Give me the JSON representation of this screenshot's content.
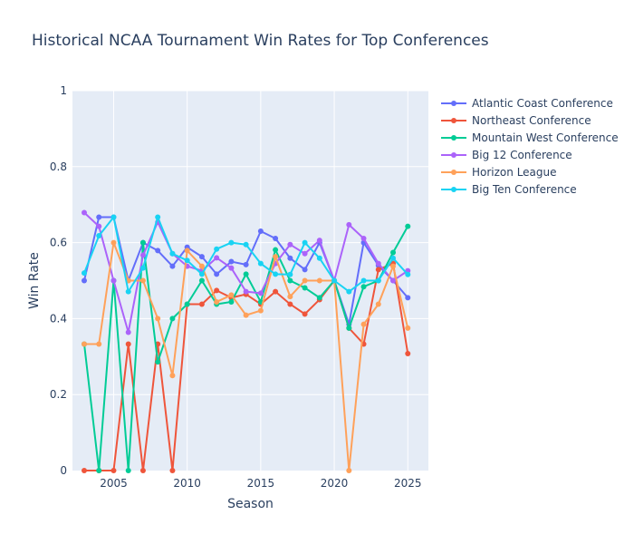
{
  "chart_data": {
    "type": "line",
    "title": "Historical NCAA Tournament Win Rates for Top Conferences",
    "xlabel": "Season",
    "ylabel": "Win Rate",
    "xlim": [
      2002.2,
      2026.4
    ],
    "ylim": [
      0,
      1
    ],
    "x_ticks": [
      2005,
      2010,
      2015,
      2020,
      2025
    ],
    "y_ticks": [
      0,
      0.2,
      0.4,
      0.6,
      0.8,
      1
    ],
    "y_tick_labels": [
      "0",
      "0.2",
      "0.4",
      "0.6",
      "0.8",
      "1"
    ],
    "grid": true,
    "legend_position": "right",
    "x": [
      2003,
      2004,
      2005,
      2006,
      2007,
      2008,
      2009,
      2010,
      2011,
      2012,
      2013,
      2014,
      2015,
      2016,
      2017,
      2018,
      2019,
      2020,
      2021,
      2022,
      2023,
      2024,
      2025
    ],
    "series": [
      {
        "name": "Atlantic Coast Conference",
        "color": "#636efa",
        "values": [
          0.5,
          0.667,
          0.667,
          0.5,
          0.6,
          0.579,
          0.538,
          0.588,
          0.563,
          0.517,
          0.55,
          0.542,
          0.63,
          0.611,
          0.559,
          0.529,
          0.6,
          0.5,
          0.385,
          0.6,
          0.54,
          0.5,
          0.455
        ]
      },
      {
        "name": "Northeast Conference",
        "color": "#EF553B",
        "values": [
          0,
          0,
          0,
          0.333,
          0,
          0.333,
          0,
          0.438,
          0.438,
          0.474,
          0.455,
          0.464,
          0.438,
          0.471,
          0.438,
          0.412,
          0.45,
          0.5,
          0.375,
          0.333,
          0.529,
          0.545,
          0.308
        ]
      },
      {
        "name": "Mountain West Conference",
        "color": "#00cc96",
        "values": [
          0.333,
          0,
          0.5,
          0,
          0.6,
          0.286,
          0.4,
          0.438,
          0.5,
          0.438,
          0.444,
          0.517,
          0.444,
          0.581,
          0.5,
          0.481,
          0.455,
          0.5,
          0.375,
          0.484,
          0.5,
          0.574,
          0.643
        ]
      },
      {
        "name": "Big 12 Conference",
        "color": "#ab63fa",
        "values": [
          0.679,
          0.643,
          0.5,
          0.364,
          0.567,
          0.654,
          0.571,
          0.538,
          0.526,
          0.56,
          0.533,
          0.471,
          0.467,
          0.545,
          0.595,
          0.571,
          0.606,
          0.5,
          0.647,
          0.611,
          0.545,
          0.5,
          0.526
        ]
      },
      {
        "name": "Horizon League",
        "color": "#FFA15A",
        "values": [
          0.333,
          0.333,
          0.6,
          0.5,
          0.5,
          0.4,
          0.25,
          0.579,
          0.538,
          0.444,
          0.462,
          0.409,
          0.421,
          0.563,
          0.458,
          0.5,
          0.5,
          0.5,
          0,
          0.385,
          0.438,
          0.538,
          0.375
        ]
      },
      {
        "name": "Big Ten Conference",
        "color": "#19d3f3",
        "values": [
          0.52,
          0.618,
          0.667,
          0.471,
          0.533,
          0.667,
          0.571,
          0.553,
          0.517,
          0.583,
          0.6,
          0.595,
          0.545,
          0.517,
          0.516,
          0.6,
          0.559,
          0.5,
          0.471,
          0.5,
          0.5,
          0.559,
          0.516
        ]
      }
    ]
  }
}
